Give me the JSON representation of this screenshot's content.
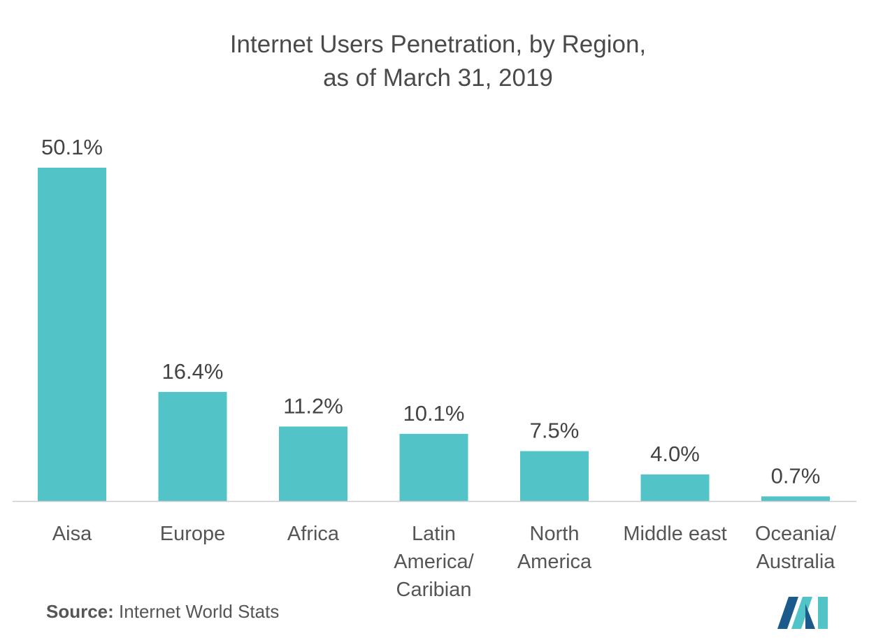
{
  "title_line1": "Internet Users Penetration, by Region,",
  "title_line2": "as of March 31, 2019",
  "source_prefix": "Source:",
  "source_text": "Internet World Stats",
  "colors": {
    "bar": "#52c4c8",
    "axis": "#cccccc",
    "logo_dark": "#1b5a8a",
    "logo_light": "#52c4c8"
  },
  "chart_data": {
    "type": "bar",
    "title": "Internet Users Penetration, by Region, as of March 31, 2019",
    "categories": [
      [
        "Aisa"
      ],
      [
        "Europe"
      ],
      [
        "Africa"
      ],
      [
        "Latin",
        "America/",
        "Caribian"
      ],
      [
        "North",
        "America"
      ],
      [
        "Middle east"
      ],
      [
        "Oceania/",
        "Australia"
      ]
    ],
    "values": [
      50.1,
      16.4,
      11.2,
      10.1,
      7.5,
      4.0,
      0.7
    ],
    "value_labels": [
      "50.1%",
      "16.4%",
      "11.2%",
      "10.1%",
      "7.5%",
      "4.0%",
      "0.7%"
    ],
    "unit": "%",
    "ylim": [
      0,
      50.1
    ],
    "grid": false,
    "legend": "none"
  }
}
